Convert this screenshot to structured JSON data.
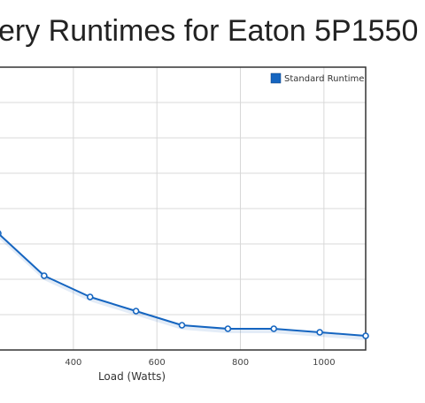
{
  "chart_data": {
    "type": "line",
    "title": "ery Runtimes for Eaton 5P1550",
    "xlabel": "Load (Watts)",
    "ylabel": "",
    "xlim": [
      220,
      1100
    ],
    "ylim": [
      0,
      80
    ],
    "x_ticks": [
      400,
      600,
      800,
      1000
    ],
    "grid": true,
    "legend_position": "top-right",
    "colors": {
      "series": "#1565c0",
      "grid": "#d8d8d8",
      "frame": "#333333",
      "legend_swatch": "#1565c0"
    },
    "series": [
      {
        "name": "Standard Runtime",
        "x": [
          220,
          330,
          440,
          550,
          660,
          770,
          880,
          990,
          1100
        ],
        "y": [
          33,
          21,
          15,
          11,
          7,
          6,
          6,
          5,
          4
        ]
      }
    ]
  }
}
